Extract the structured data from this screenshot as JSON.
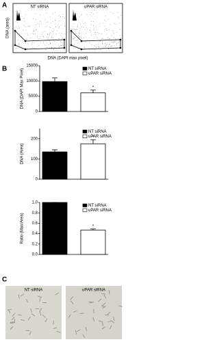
{
  "panel_labels": {
    "a": "A",
    "b": "B",
    "c": "C"
  },
  "panel_a": {
    "plots": [
      {
        "title": "NT siRNA"
      },
      {
        "title": "uPAR siRNA"
      }
    ],
    "y_label": "DNA (area)",
    "x_label": "DNA (DAPI max pixel)"
  },
  "chart_data": [
    {
      "type": "bar",
      "y_label": "DNA (DAPI Max Pixel)",
      "ylim": [
        0,
        15000
      ],
      "yticks": [
        0,
        5000,
        10000,
        15000
      ],
      "series": [
        {
          "name": "NT siRNA",
          "color": "#000000",
          "values": [
            9800
          ],
          "errors": [
            1200
          ]
        },
        {
          "name": "uPAR siRNA",
          "color": "#ffffff",
          "values": [
            6100
          ],
          "errors": [
            900
          ]
        }
      ],
      "annotation": "*"
    },
    {
      "type": "bar",
      "y_label": "DNA (Area)",
      "ylim": [
        0,
        250
      ],
      "yticks": [
        0,
        100,
        200
      ],
      "series": [
        {
          "name": "NT siRNA",
          "color": "#000000",
          "values": [
            135
          ],
          "errors": [
            10
          ]
        },
        {
          "name": "uPAR siRNA",
          "color": "#ffffff",
          "values": [
            175
          ],
          "errors": [
            20
          ]
        }
      ],
      "annotation": "*"
    },
    {
      "type": "bar",
      "y_label": "Ratio (Max/Area)",
      "ylim": [
        0,
        1.0
      ],
      "yticks": [
        {
          "value": 0,
          "label": "0.0"
        },
        0.2,
        0.4,
        0.6,
        0.8,
        {
          "value": 1.0,
          "label": "1.0"
        }
      ],
      "series": [
        {
          "name": "NT siRNA",
          "color": "#000000",
          "values": [
            1.0
          ],
          "errors": [
            0
          ]
        },
        {
          "name": "uPAR siRNA",
          "color": "#ffffff",
          "values": [
            0.47
          ],
          "errors": [
            0.02
          ]
        }
      ],
      "annotation": "*"
    }
  ],
  "panel_c": {
    "images": [
      {
        "label": "NT siRNA"
      },
      {
        "label": "uPAR siRNA"
      }
    ]
  }
}
